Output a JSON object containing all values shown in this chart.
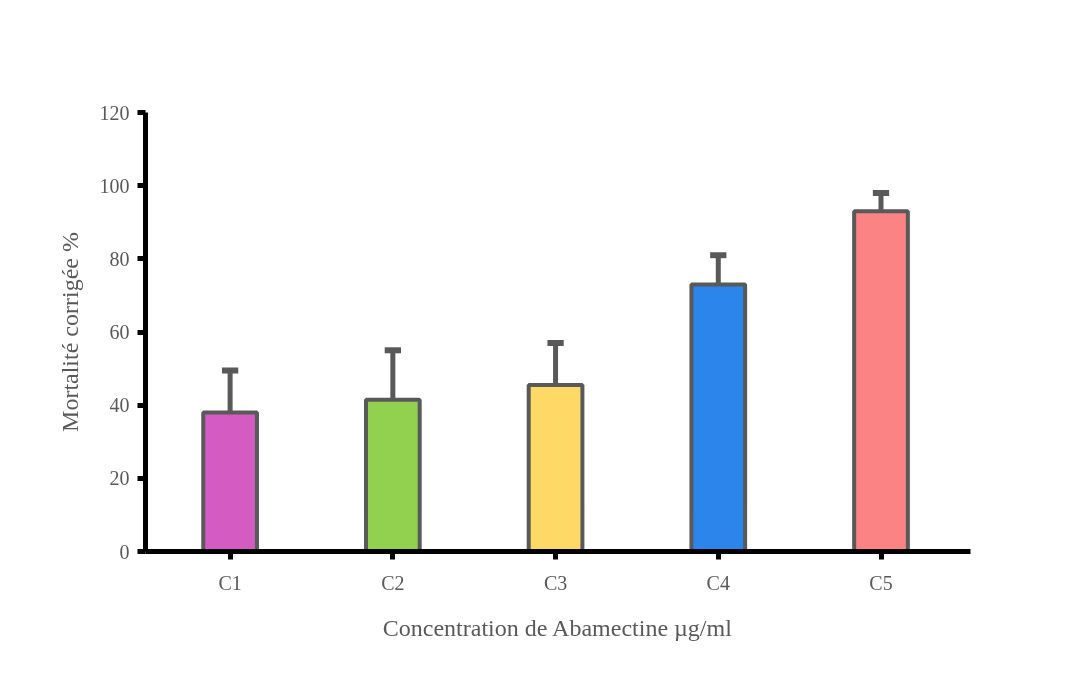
{
  "chart_data": {
    "type": "bar",
    "xlabel": "Concentration de Abamectine µg/ml",
    "ylabel": "Mortalité corrigée %",
    "categories": [
      "C1",
      "C2",
      "C3",
      "C4",
      "C5"
    ],
    "values": [
      38,
      41.5,
      45.5,
      73,
      93
    ],
    "colors": [
      "#d45bc1",
      "#92d050",
      "#ffd966",
      "#2b85ea",
      "#fb8383"
    ],
    "errors": [
      [
        38,
        49.5
      ],
      [
        41.5,
        55
      ],
      [
        45.5,
        57
      ],
      [
        73,
        81
      ],
      [
        93,
        98
      ]
    ],
    "ylim": [
      0,
      120
    ],
    "yticks": [
      0,
      20,
      40,
      60,
      80,
      100,
      120
    ]
  }
}
